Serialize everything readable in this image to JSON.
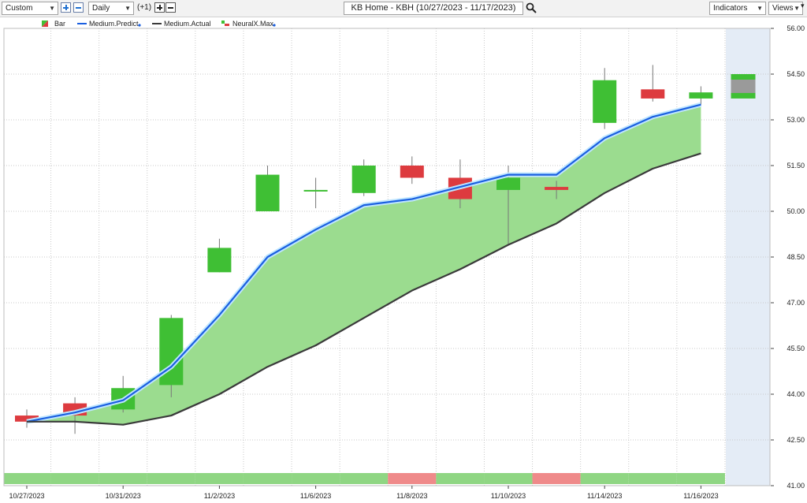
{
  "toolbar": {
    "period_select": "Custom",
    "interval_select": "Daily",
    "offset_label": "(+1)",
    "title": "KB Home - KBH (10/27/2023 - 11/17/2023)",
    "indicators_label": "Indicators",
    "views_label": "Views"
  },
  "colors": {
    "up": "#3fbf34",
    "down": "#dd3b3f",
    "predict_line": "#1a5fe0",
    "actual_line": "#3a3a3a",
    "band_fill": "#9bdc8f",
    "strip_green": "#8fd683",
    "strip_red": "#ef8a8a",
    "future_shade": "#e4ecf6"
  },
  "chart_data": {
    "type": "candlestick",
    "legend": [
      {
        "name": "Bar",
        "icon": "bar-legend-icon"
      },
      {
        "name": "Medium.Predict",
        "icon": "blue-line-icon",
        "color": "#1a5fe0"
      },
      {
        "name": "Medium.Actual",
        "icon": "black-line-icon",
        "color": "#3a3a3a"
      },
      {
        "name": "NeuralX.Max",
        "icon": "neuralx-legend-icon"
      }
    ],
    "ylim": [
      41.0,
      56.0
    ],
    "yticks": [
      "56.00",
      "54.50",
      "53.00",
      "51.50",
      "50.00",
      "48.50",
      "47.00",
      "45.50",
      "44.00",
      "42.50",
      "41.00"
    ],
    "xtick_labels": [
      {
        "index": 0,
        "label": "10/27/2023"
      },
      {
        "index": 2,
        "label": "10/31/2023"
      },
      {
        "index": 4,
        "label": "11/2/2023"
      },
      {
        "index": 6,
        "label": "11/6/2023"
      },
      {
        "index": 8,
        "label": "11/8/2023"
      },
      {
        "index": 10,
        "label": "11/10/2023"
      },
      {
        "index": 12,
        "label": "11/14/2023"
      },
      {
        "index": 14,
        "label": "11/16/2023"
      }
    ],
    "candles": [
      {
        "open": 43.3,
        "high": 43.5,
        "low": 42.9,
        "close": 43.1
      },
      {
        "open": 43.7,
        "high": 43.9,
        "low": 42.7,
        "close": 43.3
      },
      {
        "open": 43.5,
        "high": 44.6,
        "low": 43.4,
        "close": 44.2
      },
      {
        "open": 44.3,
        "high": 46.6,
        "low": 43.9,
        "close": 46.5
      },
      {
        "open": 48.0,
        "high": 49.1,
        "low": 48.0,
        "close": 48.8
      },
      {
        "open": 50.0,
        "high": 51.5,
        "low": 50.0,
        "close": 51.2
      },
      {
        "open": 50.7,
        "high": 51.1,
        "low": 50.1,
        "close": 50.7
      },
      {
        "open": 50.6,
        "high": 51.7,
        "low": 50.5,
        "close": 51.5
      },
      {
        "open": 51.5,
        "high": 51.8,
        "low": 50.9,
        "close": 51.1
      },
      {
        "open": 51.1,
        "high": 51.7,
        "low": 50.1,
        "close": 50.4
      },
      {
        "open": 50.7,
        "high": 51.5,
        "low": 48.9,
        "close": 51.1
      },
      {
        "open": 50.8,
        "high": 51.0,
        "low": 50.4,
        "close": 50.7
      },
      {
        "open": 52.9,
        "high": 54.7,
        "low": 52.7,
        "close": 54.3
      },
      {
        "open": 54.0,
        "high": 54.8,
        "low": 53.6,
        "close": 53.7
      },
      {
        "open": 53.7,
        "high": 54.1,
        "low": 53.5,
        "close": 53.9
      }
    ],
    "neuralx_max_next": {
      "open": 53.7,
      "close": 54.5
    },
    "series": [
      {
        "name": "Medium.Predict",
        "values": [
          43.1,
          43.4,
          43.8,
          44.9,
          46.6,
          48.5,
          49.4,
          50.2,
          50.4,
          50.8,
          51.2,
          51.2,
          52.4,
          53.1,
          53.5
        ]
      },
      {
        "name": "Medium.Actual",
        "values": [
          43.1,
          43.1,
          43.0,
          43.3,
          44.0,
          44.9,
          45.6,
          46.5,
          47.4,
          48.1,
          48.9,
          49.6,
          50.6,
          51.4,
          51.9
        ]
      }
    ],
    "signal_strip": [
      "up",
      "up",
      "up",
      "up",
      "up",
      "up",
      "up",
      "up",
      "down",
      "up",
      "up",
      "down",
      "up",
      "up",
      "up"
    ]
  }
}
